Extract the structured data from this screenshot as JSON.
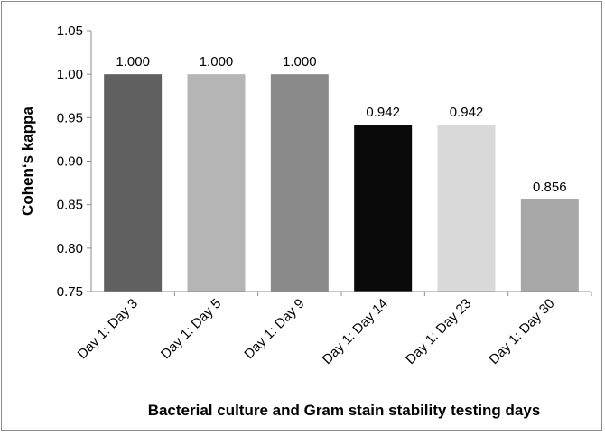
{
  "chart_data": {
    "type": "bar",
    "categories": [
      "Day 1: Day 3",
      "Day 1: Day 5",
      "Day 1: Day 9",
      "Day 1: Day 14",
      "Day 1: Day 23",
      "Day 1: Day 30"
    ],
    "values": [
      1.0,
      1.0,
      1.0,
      0.942,
      0.942,
      0.856
    ],
    "value_labels": [
      "1.000",
      "1.000",
      "1.000",
      "0.942",
      "0.942",
      "0.856"
    ],
    "bar_colors": [
      "#5f605f",
      "#b5b5b5",
      "#8a8a8a",
      "#0a0a0a",
      "#d9d9d9",
      "#a8a8a8"
    ],
    "ylabel": "Cohen‘s kappa",
    "xlabel": "Bacterial culture and Gram stain stability testing days",
    "ylim": [
      0.75,
      1.05
    ],
    "yticks": [
      "0.75",
      "0.80",
      "0.85",
      "0.90",
      "0.95",
      "1.00",
      "1.05"
    ],
    "grid": false,
    "legend": "none"
  }
}
